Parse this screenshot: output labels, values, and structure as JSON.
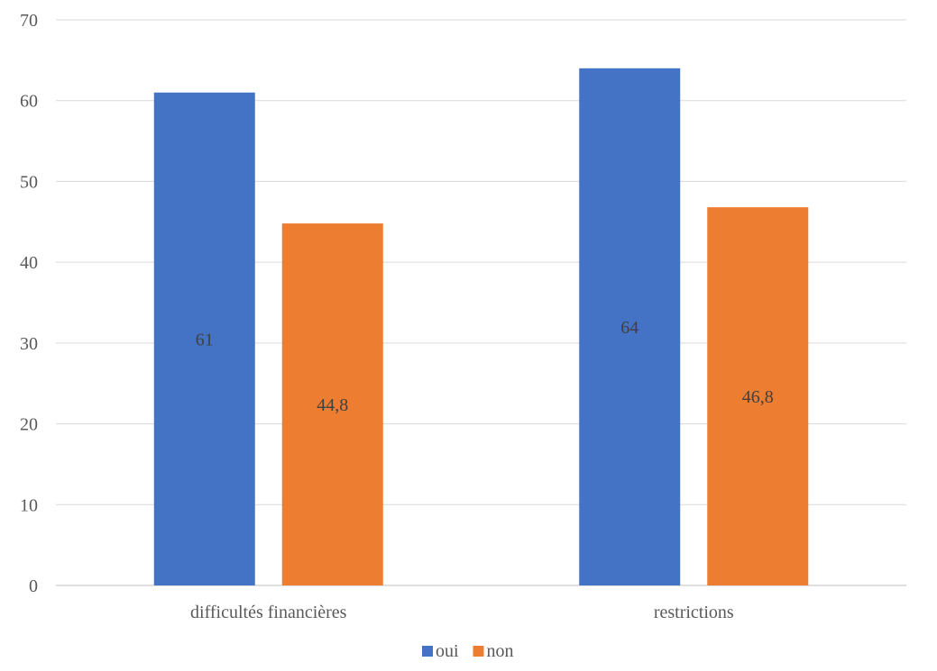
{
  "chart_data": {
    "type": "bar",
    "categories": [
      "difficultés financières",
      "restrictions"
    ],
    "series": [
      {
        "name": "oui",
        "values": [
          61,
          64
        ],
        "labels": [
          "61",
          "64"
        ],
        "color": "#4472C4"
      },
      {
        "name": "non",
        "values": [
          44.8,
          46.8
        ],
        "labels": [
          "44,8",
          "46,8"
        ],
        "color": "#ED7D31"
      }
    ],
    "ylim": [
      0,
      70
    ],
    "yticks": [
      0,
      10,
      20,
      30,
      40,
      50,
      60,
      70
    ],
    "grid": true,
    "legend": "bottom",
    "title": "",
    "xlabel": "",
    "ylabel": ""
  },
  "colors": {
    "grid": "#D9D9D9",
    "axis": "#BFBFBF",
    "text": "#595959"
  }
}
